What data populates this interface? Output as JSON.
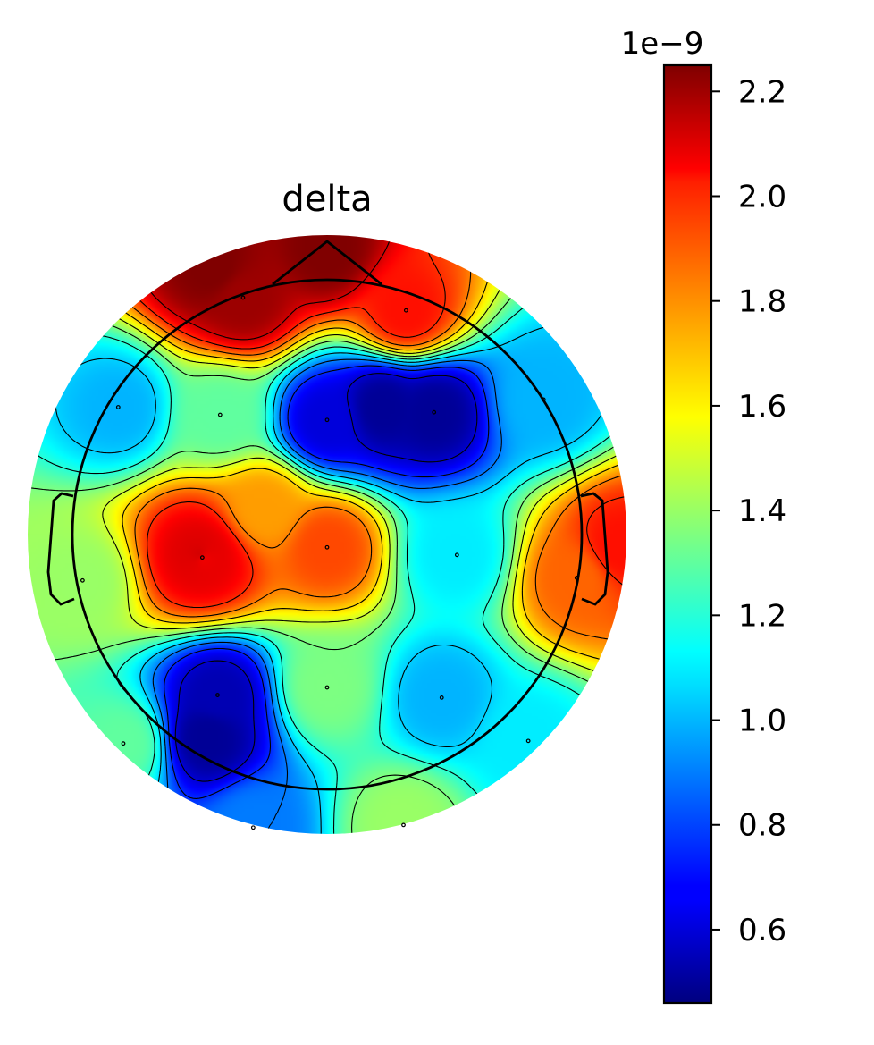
{
  "chart_data": {
    "type": "heatmap",
    "title": "delta",
    "colormap": "jet",
    "colorbar": {
      "offset_label": "1e−9",
      "vmin": 0.46,
      "vmax": 2.25,
      "ticks": [
        "0.6",
        "0.8",
        "1.0",
        "1.2",
        "1.4",
        "1.6",
        "1.8",
        "2.0",
        "2.2"
      ],
      "tick_values": [
        0.6,
        0.8,
        1.0,
        1.2,
        1.4,
        1.6,
        1.8,
        2.0,
        2.2
      ]
    },
    "sensors": [
      {
        "x": -0.33,
        "y": 0.93,
        "value": 2.2
      },
      {
        "x": 0.31,
        "y": 0.88,
        "value": 2.0
      },
      {
        "x": -0.82,
        "y": 0.5,
        "value": 1.0
      },
      {
        "x": -0.42,
        "y": 0.47,
        "value": 1.3
      },
      {
        "x": 0.0,
        "y": 0.45,
        "value": 0.62
      },
      {
        "x": 0.42,
        "y": 0.48,
        "value": 0.5
      },
      {
        "x": 0.85,
        "y": 0.53,
        "value": 1.0
      },
      {
        "x": -0.96,
        "y": -0.18,
        "value": 1.4
      },
      {
        "x": -0.49,
        "y": -0.09,
        "value": 2.05
      },
      {
        "x": 0.0,
        "y": -0.05,
        "value": 1.9
      },
      {
        "x": 0.51,
        "y": -0.08,
        "value": 1.1
      },
      {
        "x": 0.98,
        "y": -0.17,
        "value": 1.85
      },
      {
        "x": -0.43,
        "y": -0.63,
        "value": 0.55
      },
      {
        "x": 0.0,
        "y": -0.6,
        "value": 1.35
      },
      {
        "x": 0.45,
        "y": -0.64,
        "value": 1.0
      },
      {
        "x": -0.8,
        "y": -0.82,
        "value": 1.3
      },
      {
        "x": 0.79,
        "y": -0.81,
        "value": 1.1
      },
      {
        "x": -0.29,
        "y": -1.15,
        "value": 0.9
      },
      {
        "x": 0.3,
        "y": -1.14,
        "value": 1.4
      }
    ],
    "extra_sources": [
      {
        "x": 0.22,
        "y": 0.5,
        "value": 0.5
      },
      {
        "x": -0.5,
        "y": -0.08,
        "value": 2.1
      },
      {
        "x": -0.25,
        "y": 0.1,
        "value": 1.75
      },
      {
        "x": 0.0,
        "y": 1.12,
        "value": 2.25
      },
      {
        "x": -0.45,
        "y": 1.05,
        "value": 2.25
      },
      {
        "x": -0.47,
        "y": -0.8,
        "value": 0.5
      },
      {
        "x": 1.15,
        "y": -0.05,
        "value": 2.0
      }
    ]
  }
}
